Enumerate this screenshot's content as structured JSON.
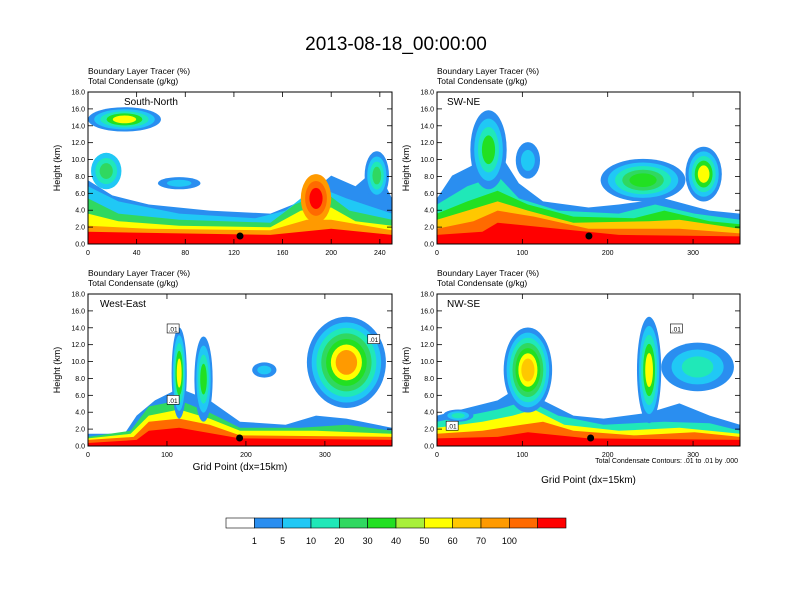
{
  "figure": {
    "title": "2013-08-18_00:00:00",
    "footnote": "Total Condensate Contours: .01 to .01 by .000"
  },
  "colorbar": {
    "labels": [
      "1",
      "5",
      "10",
      "20",
      "30",
      "40",
      "50",
      "60",
      "70",
      "100"
    ],
    "colors": [
      "#ffffff",
      "#2a8ef0",
      "#20c8f5",
      "#20e8b8",
      "#30d860",
      "#22e022",
      "#a8f03a",
      "#ffff00",
      "#ffc800",
      "#ff9a00",
      "#ff6a00",
      "#ff0000"
    ]
  },
  "chart_data": [
    {
      "type": "heatmap",
      "panel": "South-North",
      "header": [
        "Boundary Layer Tracer   (%)",
        "Total Condensate   (g/kg)"
      ],
      "ylabel": "Height (km)",
      "xlabel": "",
      "xlim": [
        0,
        250
      ],
      "ylim": [
        0,
        18
      ],
      "xticks": [
        "0",
        "40",
        "80",
        "120",
        "160",
        "200",
        "240"
      ],
      "yticks": [
        "0.0",
        "2.0",
        "4.0",
        "6.0",
        "8.0",
        "10.0",
        "12.0",
        "14.0",
        "16.0",
        "18.0"
      ],
      "contour_labels": [],
      "marker_x": 125
    },
    {
      "type": "heatmap",
      "panel": "SW-NE",
      "header": [
        "Boundary Layer Tracer   (%)",
        "Total Condensate   (g/kg)"
      ],
      "ylabel": "Height (km)",
      "xlabel": "",
      "xlim": [
        0,
        355
      ],
      "ylim": [
        0,
        18
      ],
      "xticks": [
        "0",
        "100",
        "200",
        "300"
      ],
      "yticks": [
        "0.0",
        "2.0",
        "4.0",
        "6.0",
        "8.0",
        "10.0",
        "12.0",
        "14.0",
        "16.0",
        "18.0"
      ],
      "contour_labels": [],
      "marker_x": 178
    },
    {
      "type": "heatmap",
      "panel": "West-East",
      "header": [
        "Boundary Layer Tracer   (%)",
        "Total Condensate   (g/kg)"
      ],
      "ylabel": "Height (km)",
      "xlabel": "Grid Point (dx=15km)",
      "xlim": [
        0,
        385
      ],
      "ylim": [
        0,
        18
      ],
      "xticks": [
        "0",
        "100",
        "200",
        "300"
      ],
      "yticks": [
        "0.0",
        "2.0",
        "4.0",
        "6.0",
        "8.0",
        "10.0",
        "12.0",
        "14.0",
        "16.0",
        "18.0"
      ],
      "contour_labels": [
        ".01",
        ".01",
        ".01"
      ],
      "marker_x": 192
    },
    {
      "type": "heatmap",
      "panel": "NW-SE",
      "header": [
        "Boundary Layer Tracer   (%)",
        "Total Condensate   (g/kg)"
      ],
      "ylabel": "Height (km)",
      "xlabel": "Grid Point (dx=15km)",
      "xlim": [
        0,
        355
      ],
      "ylim": [
        0,
        18
      ],
      "xticks": [
        "0",
        "100",
        "200",
        "300"
      ],
      "yticks": [
        "0.0",
        "2.0",
        "4.0",
        "6.0",
        "8.0",
        "10.0",
        "12.0",
        "14.0",
        "16.0",
        "18.0"
      ],
      "contour_labels": [
        ".01",
        ".01"
      ],
      "marker_x": 180
    }
  ]
}
